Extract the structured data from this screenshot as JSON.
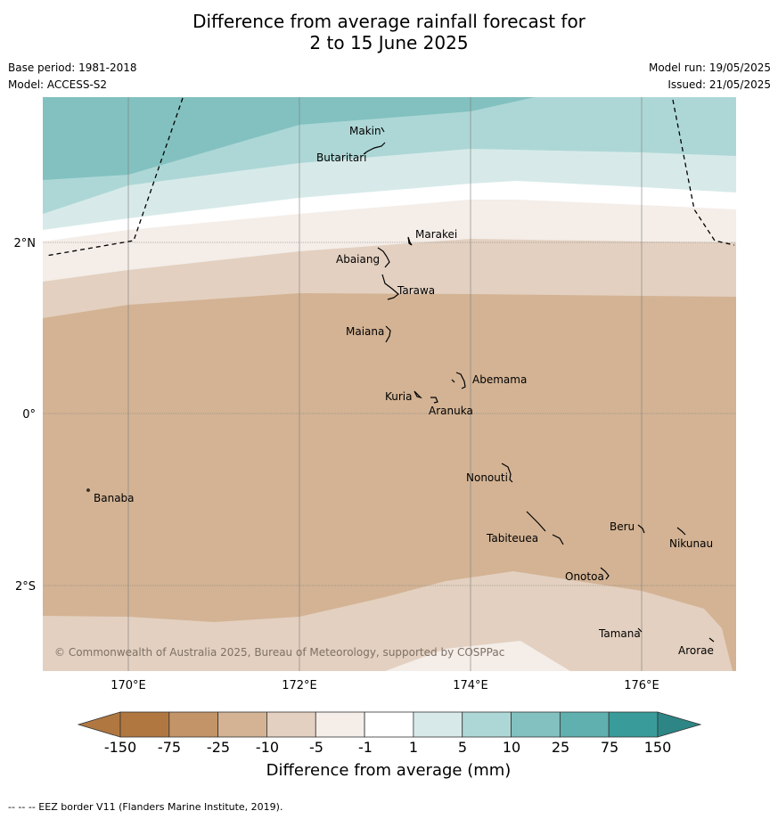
{
  "header": {
    "title_line1": "Difference from average rainfall forecast for",
    "title_line2": "2 to 15 June 2025",
    "base_period": "Base period: 1981-2018",
    "model": "Model: ACCESS-S2",
    "model_run": "Model run: 19/05/2025",
    "issued": "Issued: 21/05/2025"
  },
  "map": {
    "lat_labels": [
      "2°N",
      "0°",
      "2°S"
    ],
    "lon_labels": [
      "170°E",
      "172°E",
      "174°E",
      "176°E"
    ],
    "islands": [
      "Makin",
      "Butaritari",
      "Marakei",
      "Abaiang",
      "Tarawa",
      "Maiana",
      "Abemama",
      "Kuria",
      "Aranuka",
      "Nonouti",
      "Banaba",
      "Beru",
      "Nikunau",
      "Tabiteuea",
      "Onotoa",
      "Tamana",
      "Arorae"
    ],
    "copyright": "© Commonwealth of Australia 2025, Bureau of Meteorology, supported by COSPPac"
  },
  "colorbar": {
    "ticks": [
      "-150",
      "-75",
      "-25",
      "-10",
      "-5",
      "-1",
      "1",
      "5",
      "10",
      "25",
      "75",
      "150"
    ],
    "colors": [
      "#b07840",
      "#c39467",
      "#d3b394",
      "#e3d0c0",
      "#f4ede8",
      "#ffffff",
      "#d7eae9",
      "#add7d6",
      "#82c1c0",
      "#5fb0af",
      "#399c9b",
      "#2d8685"
    ],
    "label": "Difference from average (mm)"
  },
  "footer": {
    "eez_note": "--  --  -- EEZ border V11 (Flanders Marine Institute, 2019)."
  }
}
